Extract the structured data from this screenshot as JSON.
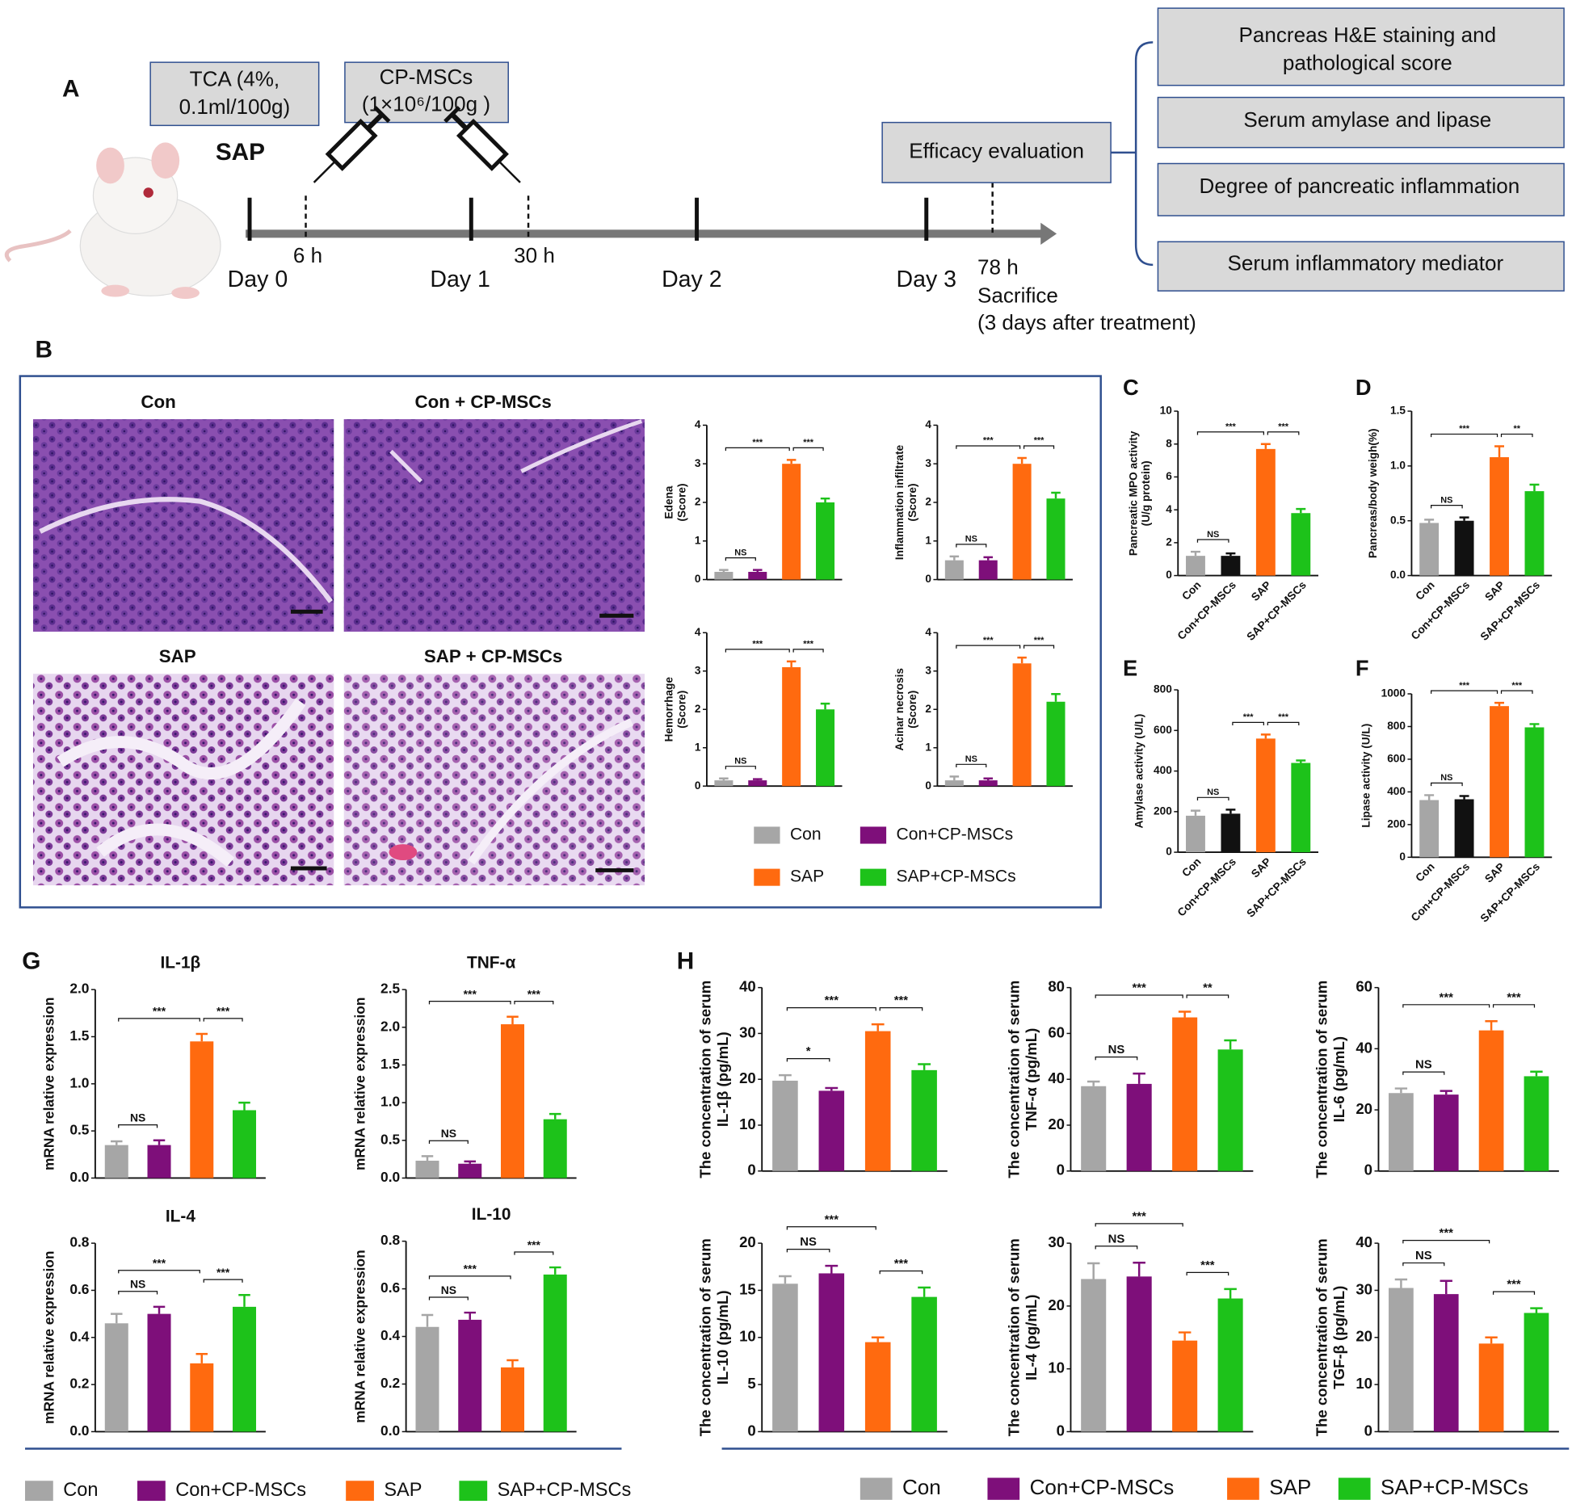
{
  "panel_labels": {
    "a": "A",
    "b": "B",
    "c": "C",
    "d": "D",
    "e": "E",
    "f": "F",
    "g": "G",
    "h": "H"
  },
  "timeline": {
    "model": "SAP",
    "injections": [
      [
        "TCA (4%,",
        "0.1ml/100g)"
      ],
      [
        "CP-MSCs",
        "(1×10⁶/100g )"
      ]
    ],
    "times": [
      "6 h",
      "30 h"
    ],
    "days": [
      "Day 0",
      "Day 1",
      "Day 2",
      "Day 3"
    ],
    "endpoint": [
      "78 h",
      "Sacrifice",
      "(3 days after treatment)"
    ],
    "evaluation": "Efficacy evaluation",
    "outcomes": [
      [
        "Pancreas H&E staining and",
        "pathological score"
      ],
      [
        "Serum amylase and lipase"
      ],
      [
        "Degree of pancreatic inflammation"
      ],
      [
        "Serum inflammatory mediator"
      ]
    ]
  },
  "histology": {
    "titles": [
      "Con",
      "Con + CP-MSCs",
      "SAP",
      "SAP + CP-MSCs"
    ]
  },
  "legends": [
    {
      "items": [
        {
          "name": "Con",
          "color": "#a6a6a6"
        },
        {
          "name": "Con+CP-MSCs",
          "color": "#7e0f7a"
        },
        {
          "name": "SAP",
          "color": "#ff6a0f"
        },
        {
          "name": "SAP+CP-MSCs",
          "color": "#1dc21a"
        }
      ]
    },
    {
      "items": [
        {
          "name": "Con",
          "color": "#a6a6a6"
        },
        {
          "name": "Con+CP-MSCs",
          "color": "#7e0f7a"
        },
        {
          "name": "SAP",
          "color": "#ff6a0f"
        },
        {
          "name": "SAP+CP-MSCs",
          "color": "#1dc21a"
        }
      ]
    },
    {
      "items": [
        {
          "name": "Con",
          "color": "#a6a6a6"
        },
        {
          "name": "Con+CP-MSCs",
          "color": "#7e0f7a"
        },
        {
          "name": "SAP",
          "color": "#ff6a0f"
        },
        {
          "name": "SAP+CP-MSCs",
          "color": "#1dc21a"
        }
      ]
    }
  ],
  "chart_data": [
    {
      "type": "bar",
      "ylabel": [
        "Edena",
        "(Score)"
      ],
      "categories": [
        null,
        null,
        null,
        null
      ],
      "values": [
        0.2,
        0.2,
        3.0,
        2.0
      ],
      "errors": [
        0.05,
        0.05,
        0.1,
        0.1
      ],
      "colors": [
        "#a6a6a6",
        "#7e0f7a",
        "#ff6a0f",
        "#1dc21a"
      ],
      "ylim": [
        0,
        4
      ],
      "yticks": [
        0,
        1,
        2,
        3,
        4
      ],
      "significance": [
        {
          "text": "NS",
          "from": 0,
          "to": 1
        },
        {
          "text": "***",
          "from": 0,
          "to": 2
        },
        {
          "text": "***",
          "from": 2,
          "to": 3
        }
      ]
    },
    {
      "type": "bar",
      "ylabel": [
        "Inflammation infiltrate",
        "(Score)"
      ],
      "categories": [
        null,
        null,
        null,
        null
      ],
      "values": [
        0.5,
        0.5,
        3.0,
        2.1
      ],
      "errors": [
        0.1,
        0.08,
        0.15,
        0.15
      ],
      "colors": [
        "#a6a6a6",
        "#7e0f7a",
        "#ff6a0f",
        "#1dc21a"
      ],
      "ylim": [
        0,
        4
      ],
      "yticks": [
        0,
        1,
        2,
        3,
        4
      ],
      "significance": [
        {
          "text": "NS",
          "from": 0,
          "to": 1
        },
        {
          "text": "***",
          "from": 0,
          "to": 2
        },
        {
          "text": "***",
          "from": 2,
          "to": 3
        }
      ]
    },
    {
      "type": "bar",
      "ylabel": [
        "Hemorrhage",
        "(Score)"
      ],
      "categories": [
        null,
        null,
        null,
        null
      ],
      "values": [
        0.15,
        0.15,
        3.1,
        2.0
      ],
      "errors": [
        0.05,
        0.03,
        0.15,
        0.15
      ],
      "colors": [
        "#a6a6a6",
        "#7e0f7a",
        "#ff6a0f",
        "#1dc21a"
      ],
      "ylim": [
        0,
        4
      ],
      "yticks": [
        0,
        1,
        2,
        3,
        4
      ],
      "significance": [
        {
          "text": "NS",
          "from": 0,
          "to": 1
        },
        {
          "text": "***",
          "from": 0,
          "to": 2
        },
        {
          "text": "***",
          "from": 2,
          "to": 3
        }
      ]
    },
    {
      "type": "bar",
      "ylabel": [
        "Acinar necrosis",
        "(Score)"
      ],
      "categories": [
        null,
        null,
        null,
        null
      ],
      "values": [
        0.15,
        0.15,
        3.2,
        2.2
      ],
      "errors": [
        0.1,
        0.05,
        0.15,
        0.2
      ],
      "colors": [
        "#a6a6a6",
        "#7e0f7a",
        "#ff6a0f",
        "#1dc21a"
      ],
      "ylim": [
        0,
        4
      ],
      "yticks": [
        0,
        1,
        2,
        3,
        4
      ],
      "significance": [
        {
          "text": "NS",
          "from": 0,
          "to": 1
        },
        {
          "text": "***",
          "from": 0,
          "to": 2
        },
        {
          "text": "***",
          "from": 2,
          "to": 3
        }
      ]
    },
    {
      "type": "bar",
      "ylabel": [
        "Pancreatic MPO activity",
        "(U/g protein)"
      ],
      "categories": [
        "Con",
        "Con+CP-MSCs",
        "SAP",
        "SAP+CP-MSCs"
      ],
      "values": [
        1.2,
        1.2,
        7.7,
        3.8
      ],
      "errors": [
        0.25,
        0.15,
        0.3,
        0.25
      ],
      "colors": [
        "#a6a6a6",
        "#111111",
        "#ff6a0f",
        "#1dc21a"
      ],
      "ylim": [
        0,
        10
      ],
      "yticks": [
        0,
        2,
        4,
        6,
        8,
        10
      ],
      "significance": [
        {
          "text": "NS",
          "from": 0,
          "to": 1
        },
        {
          "text": "***",
          "from": 0,
          "to": 2
        },
        {
          "text": "***",
          "from": 2,
          "to": 3
        }
      ]
    },
    {
      "type": "bar",
      "ylabel": [
        "Pancreas/body weigh(%)"
      ],
      "categories": [
        "Con",
        "Con+CP-MSCs",
        "SAP",
        "SAP+CP-MSCs"
      ],
      "values": [
        0.48,
        0.5,
        1.08,
        0.77
      ],
      "errors": [
        0.03,
        0.03,
        0.1,
        0.06
      ],
      "colors": [
        "#a6a6a6",
        "#111111",
        "#ff6a0f",
        "#1dc21a"
      ],
      "ylim": [
        0,
        1.5
      ],
      "yticks": [
        {
          "value": 0,
          "label": "0.0"
        },
        0.5,
        {
          "value": 1,
          "label": "1.0"
        },
        1.5
      ],
      "significance": [
        {
          "text": "NS",
          "from": 0,
          "to": 1
        },
        {
          "text": "***",
          "from": 0,
          "to": 2
        },
        {
          "text": "**",
          "from": 2,
          "to": 3
        }
      ]
    },
    {
      "type": "bar",
      "ylabel": [
        "Amylase activity (U/L)"
      ],
      "categories": [
        "Con",
        "Con+CP-MSCs",
        "SAP",
        "SAP+CP-MSCs"
      ],
      "values": [
        180,
        190,
        560,
        440
      ],
      "errors": [
        25,
        20,
        20,
        12
      ],
      "colors": [
        "#a6a6a6",
        "#111111",
        "#ff6a0f",
        "#1dc21a"
      ],
      "ylim": [
        0,
        800
      ],
      "yticks": [
        0,
        200,
        400,
        600,
        800
      ],
      "significance": [
        {
          "text": "NS",
          "from": 0,
          "to": 1
        },
        {
          "text": "***",
          "from": 1,
          "to": 2
        },
        {
          "text": "***",
          "from": 2,
          "to": 3
        }
      ]
    },
    {
      "type": "bar",
      "ylabel": [
        "Lipase activity (U/L)"
      ],
      "categories": [
        "Con",
        "Con+CP-MSCs",
        "SAP",
        "SAP+CP-MSCs"
      ],
      "values": [
        350,
        355,
        925,
        795
      ],
      "errors": [
        30,
        20,
        20,
        20
      ],
      "colors": [
        "#a6a6a6",
        "#111111",
        "#ff6a0f",
        "#1dc21a"
      ],
      "ylim": [
        0,
        1000
      ],
      "yticks": [
        0,
        200,
        400,
        600,
        800,
        1000
      ],
      "significance": [
        {
          "text": "NS",
          "from": 0,
          "to": 1
        },
        {
          "text": "***",
          "from": 0,
          "to": 2
        },
        {
          "text": "***",
          "from": 2,
          "to": 3
        }
      ]
    },
    {
      "type": "bar",
      "title": "IL-1β",
      "ylabel": [
        "mRNA relative  expression"
      ],
      "categories": [
        null,
        null,
        null,
        null
      ],
      "values": [
        0.35,
        0.35,
        1.45,
        0.72
      ],
      "errors": [
        0.04,
        0.05,
        0.08,
        0.08
      ],
      "colors": [
        "#a6a6a6",
        "#7e0f7a",
        "#ff6a0f",
        "#1dc21a"
      ],
      "ylim": [
        0,
        2
      ],
      "yticks": [
        {
          "value": 0,
          "label": "0.0"
        },
        0.5,
        {
          "value": 1,
          "label": "1.0"
        },
        1.5,
        {
          "value": 2,
          "label": "2.0"
        }
      ],
      "significance": [
        {
          "text": "NS",
          "from": 0,
          "to": 1
        },
        {
          "text": "***",
          "from": 0,
          "to": 2
        },
        {
          "text": "***",
          "from": 2,
          "to": 3
        }
      ]
    },
    {
      "type": "bar",
      "title": "TNF-α",
      "ylabel": [
        "mRNA relative  expression"
      ],
      "categories": [
        null,
        null,
        null,
        null
      ],
      "values": [
        0.23,
        0.19,
        2.04,
        0.78
      ],
      "errors": [
        0.06,
        0.03,
        0.1,
        0.07
      ],
      "colors": [
        "#a6a6a6",
        "#7e0f7a",
        "#ff6a0f",
        "#1dc21a"
      ],
      "ylim": [
        0,
        2.5
      ],
      "yticks": [
        {
          "value": 0,
          "label": "0.0"
        },
        0.5,
        {
          "value": 1,
          "label": "1.0"
        },
        1.5,
        {
          "value": 2,
          "label": "2.0"
        },
        2.5
      ],
      "significance": [
        {
          "text": "NS",
          "from": 0,
          "to": 1
        },
        {
          "text": "***",
          "from": 0,
          "to": 2
        },
        {
          "text": "***",
          "from": 2,
          "to": 3
        }
      ]
    },
    {
      "type": "bar",
      "title": "IL-4",
      "ylabel": [
        "mRNA relative  expression"
      ],
      "categories": [
        null,
        null,
        null,
        null
      ],
      "values": [
        0.46,
        0.5,
        0.29,
        0.53
      ],
      "errors": [
        0.04,
        0.03,
        0.04,
        0.05
      ],
      "colors": [
        "#a6a6a6",
        "#7e0f7a",
        "#ff6a0f",
        "#1dc21a"
      ],
      "ylim": [
        0,
        0.8
      ],
      "yticks": [
        {
          "value": 0,
          "label": "0.0"
        },
        0.2,
        0.4,
        0.6,
        0.8
      ],
      "significance": [
        {
          "text": "NS",
          "from": 0,
          "to": 1
        },
        {
          "text": "***",
          "from": 0,
          "to": 2
        },
        {
          "text": "***",
          "from": 2,
          "to": 3
        }
      ]
    },
    {
      "type": "bar",
      "title": "IL-10",
      "ylabel": [
        "mRNA relative  expression"
      ],
      "categories": [
        null,
        null,
        null,
        null
      ],
      "values": [
        0.44,
        0.47,
        0.27,
        0.66
      ],
      "errors": [
        0.05,
        0.03,
        0.03,
        0.03
      ],
      "colors": [
        "#a6a6a6",
        "#7e0f7a",
        "#ff6a0f",
        "#1dc21a"
      ],
      "ylim": [
        0,
        0.8
      ],
      "yticks": [
        {
          "value": 0,
          "label": "0.0"
        },
        0.2,
        0.4,
        0.6,
        0.8
      ],
      "significance": [
        {
          "text": "NS",
          "from": 0,
          "to": 1
        },
        {
          "text": "***",
          "from": 0,
          "to": 2
        },
        {
          "text": "***",
          "from": 2,
          "to": 3
        }
      ]
    },
    {
      "type": "bar",
      "ylabel": [
        "The concentration of serum",
        "IL-1β (pg/mL)"
      ],
      "categories": [
        null,
        null,
        null,
        null
      ],
      "values": [
        19.7,
        17.5,
        30.5,
        22
      ],
      "errors": [
        1.2,
        0.6,
        1.5,
        1.3
      ],
      "colors": [
        "#a6a6a6",
        "#7e0f7a",
        "#ff6a0f",
        "#1dc21a"
      ],
      "ylim": [
        0,
        40
      ],
      "yticks": [
        0,
        10,
        20,
        30,
        40
      ],
      "significance": [
        {
          "text": "*",
          "from": 0,
          "to": 1
        },
        {
          "text": "***",
          "from": 0,
          "to": 2
        },
        {
          "text": "***",
          "from": 2,
          "to": 3
        }
      ]
    },
    {
      "type": "bar",
      "ylabel": [
        "The concentration of serum",
        "TNF-α (pg/mL)"
      ],
      "categories": [
        null,
        null,
        null,
        null
      ],
      "values": [
        37,
        38,
        67,
        53
      ],
      "errors": [
        2,
        4.5,
        2.5,
        4
      ],
      "colors": [
        "#a6a6a6",
        "#7e0f7a",
        "#ff6a0f",
        "#1dc21a"
      ],
      "ylim": [
        0,
        80
      ],
      "yticks": [
        0,
        20,
        40,
        60,
        80
      ],
      "significance": [
        {
          "text": "NS",
          "from": 0,
          "to": 1
        },
        {
          "text": "***",
          "from": 0,
          "to": 2
        },
        {
          "text": "**",
          "from": 2,
          "to": 3
        }
      ]
    },
    {
      "type": "bar",
      "ylabel": [
        "The concentration of serum",
        "IL-6 (pg/mL)"
      ],
      "categories": [
        null,
        null,
        null,
        null
      ],
      "values": [
        25.5,
        25,
        46,
        31
      ],
      "errors": [
        1.5,
        1.2,
        3,
        1.5
      ],
      "colors": [
        "#a6a6a6",
        "#7e0f7a",
        "#ff6a0f",
        "#1dc21a"
      ],
      "ylim": [
        0,
        60
      ],
      "yticks": [
        0,
        20,
        40,
        60
      ],
      "significance": [
        {
          "text": "NS",
          "from": 0,
          "to": 1
        },
        {
          "text": "***",
          "from": 0,
          "to": 2
        },
        {
          "text": "***",
          "from": 2,
          "to": 3
        }
      ]
    },
    {
      "type": "bar",
      "ylabel": [
        "The concentration of serum",
        "IL-10 (pg/mL)"
      ],
      "categories": [
        null,
        null,
        null,
        null
      ],
      "values": [
        15.7,
        16.8,
        9.5,
        14.3
      ],
      "errors": [
        0.8,
        0.8,
        0.5,
        1
      ],
      "colors": [
        "#a6a6a6",
        "#7e0f7a",
        "#ff6a0f",
        "#1dc21a"
      ],
      "ylim": [
        0,
        20
      ],
      "yticks": [
        0,
        5,
        10,
        15,
        20
      ],
      "significance": [
        {
          "text": "NS",
          "from": 0,
          "to": 1
        },
        {
          "text": "***",
          "from": 0,
          "to": 2
        },
        {
          "text": "***",
          "from": 2,
          "to": 3
        }
      ]
    },
    {
      "type": "bar",
      "ylabel": [
        "The concentration of serum",
        "IL-4 (pg/mL)"
      ],
      "categories": [
        null,
        null,
        null,
        null
      ],
      "values": [
        24.3,
        24.7,
        14.5,
        21.2
      ],
      "errors": [
        2.5,
        2.2,
        1.3,
        1.5
      ],
      "colors": [
        "#a6a6a6",
        "#7e0f7a",
        "#ff6a0f",
        "#1dc21a"
      ],
      "ylim": [
        0,
        30
      ],
      "yticks": [
        0,
        10,
        20,
        30
      ],
      "significance": [
        {
          "text": "NS",
          "from": 0,
          "to": 1
        },
        {
          "text": "***",
          "from": 0,
          "to": 2
        },
        {
          "text": "***",
          "from": 2,
          "to": 3
        }
      ]
    },
    {
      "type": "bar",
      "ylabel": [
        "The concentration of serum",
        "TGF-β (pg/mL)"
      ],
      "categories": [
        null,
        null,
        null,
        null
      ],
      "values": [
        30.5,
        29.2,
        18.7,
        25.2
      ],
      "errors": [
        1.8,
        2.8,
        1.3,
        1
      ],
      "colors": [
        "#a6a6a6",
        "#7e0f7a",
        "#ff6a0f",
        "#1dc21a"
      ],
      "ylim": [
        0,
        40
      ],
      "yticks": [
        0,
        10,
        20,
        30,
        40
      ],
      "significance": [
        {
          "text": "NS",
          "from": 0,
          "to": 1
        },
        {
          "text": "***",
          "from": 0,
          "to": 2
        },
        {
          "text": "***",
          "from": 2,
          "to": 3
        }
      ]
    }
  ]
}
